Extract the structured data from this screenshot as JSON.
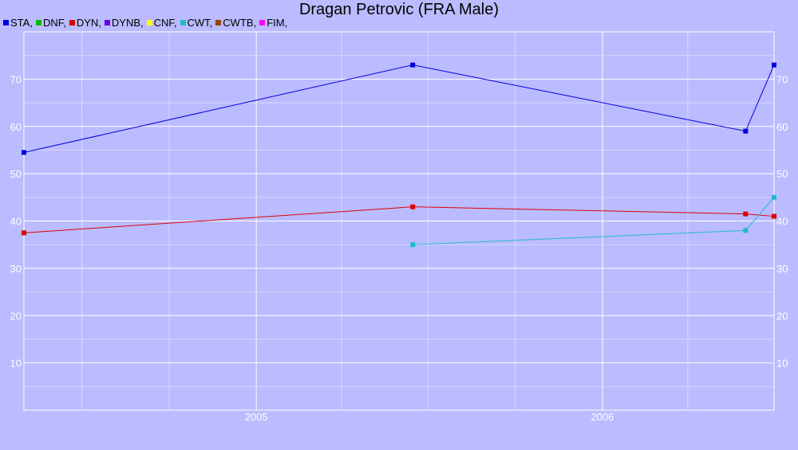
{
  "chart_data": {
    "type": "line",
    "title": "Dragan Petrovic (FRA Male)",
    "xlabel": "",
    "ylabel": "",
    "x_range": [
      "2004-05-01",
      "2006-07-01"
    ],
    "ylim": [
      0,
      80
    ],
    "y_ticks": [
      10,
      20,
      30,
      40,
      50,
      60,
      70
    ],
    "x_ticks": [
      "2005",
      "2006"
    ],
    "grid": true,
    "legend_position": "top-left",
    "legend": [
      {
        "label": "STA,",
        "color": "#0000dd"
      },
      {
        "label": "DNF,",
        "color": "#00bb00"
      },
      {
        "label": "DYN,",
        "color": "#dd0000"
      },
      {
        "label": "DYNB,",
        "color": "#6600dd"
      },
      {
        "label": "CNF,",
        "color": "#ffff00"
      },
      {
        "label": "CWT,",
        "color": "#22bbcc"
      },
      {
        "label": "CWTB,",
        "color": "#994400"
      },
      {
        "label": "FIM,",
        "color": "#ff00ff"
      }
    ],
    "series": [
      {
        "name": "STA",
        "color": "#0000dd",
        "points": [
          {
            "x": "2004-05-01",
            "y": 54.5
          },
          {
            "x": "2005-06-15",
            "y": 73
          },
          {
            "x": "2006-06-01",
            "y": 59
          },
          {
            "x": "2006-07-01",
            "y": 73
          }
        ]
      },
      {
        "name": "DYN",
        "color": "#dd0000",
        "points": [
          {
            "x": "2004-05-01",
            "y": 37.5
          },
          {
            "x": "2005-06-15",
            "y": 43
          },
          {
            "x": "2006-06-01",
            "y": 41.5
          },
          {
            "x": "2006-07-01",
            "y": 41
          }
        ]
      },
      {
        "name": "CWT",
        "color": "#22bbcc",
        "points": [
          {
            "x": "2005-06-15",
            "y": 35
          },
          {
            "x": "2006-06-01",
            "y": 38
          },
          {
            "x": "2006-07-01",
            "y": 45
          }
        ]
      }
    ]
  }
}
